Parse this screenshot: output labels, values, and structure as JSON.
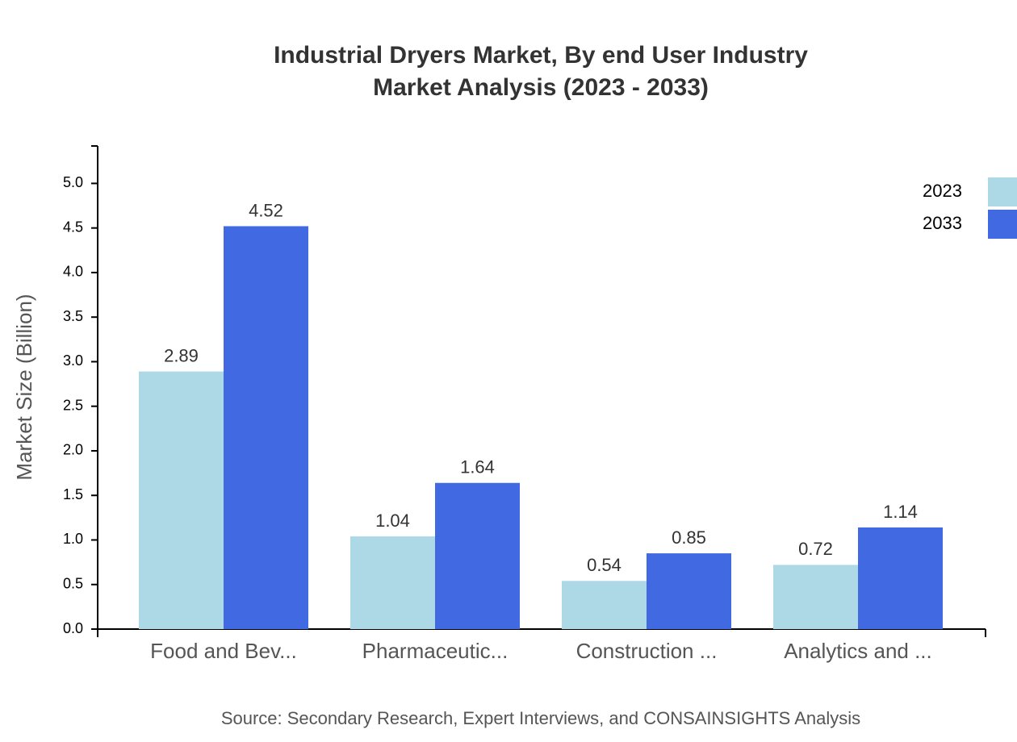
{
  "chart_data": {
    "type": "bar",
    "title": "Industrial Dryers Market, By end User Industry",
    "subtitle": "Market Analysis (2023 - 2033)",
    "y_label": "Market Size (Billion)",
    "source": "Source: Secondary Research, Expert Interviews, and CONSAINSIGHTS Analysis",
    "categories": [
      "Food and Bev...",
      "Pharmaceutic...",
      "Construction ...",
      "Analytics and ..."
    ],
    "series": [
      {
        "name": "2023",
        "color": "#add8e6",
        "values": [
          2.89,
          1.04,
          0.54,
          0.72
        ]
      },
      {
        "name": "2033",
        "color": "#4169e1",
        "values": [
          4.52,
          1.64,
          0.85,
          1.14
        ]
      }
    ],
    "ylim": [
      0,
      5.42
    ],
    "yticks": [
      {
        "value": 0,
        "label": "0.0"
      },
      0.5,
      {
        "value": 1,
        "label": "1.0"
      },
      1.5,
      {
        "value": 2,
        "label": "2.0"
      },
      2.5,
      {
        "value": 3,
        "label": "3.0"
      },
      3.5,
      {
        "value": 4,
        "label": "4.0"
      },
      4.5,
      {
        "value": 5,
        "label": "5.0"
      }
    ],
    "legend": "top-right",
    "grid": false
  }
}
